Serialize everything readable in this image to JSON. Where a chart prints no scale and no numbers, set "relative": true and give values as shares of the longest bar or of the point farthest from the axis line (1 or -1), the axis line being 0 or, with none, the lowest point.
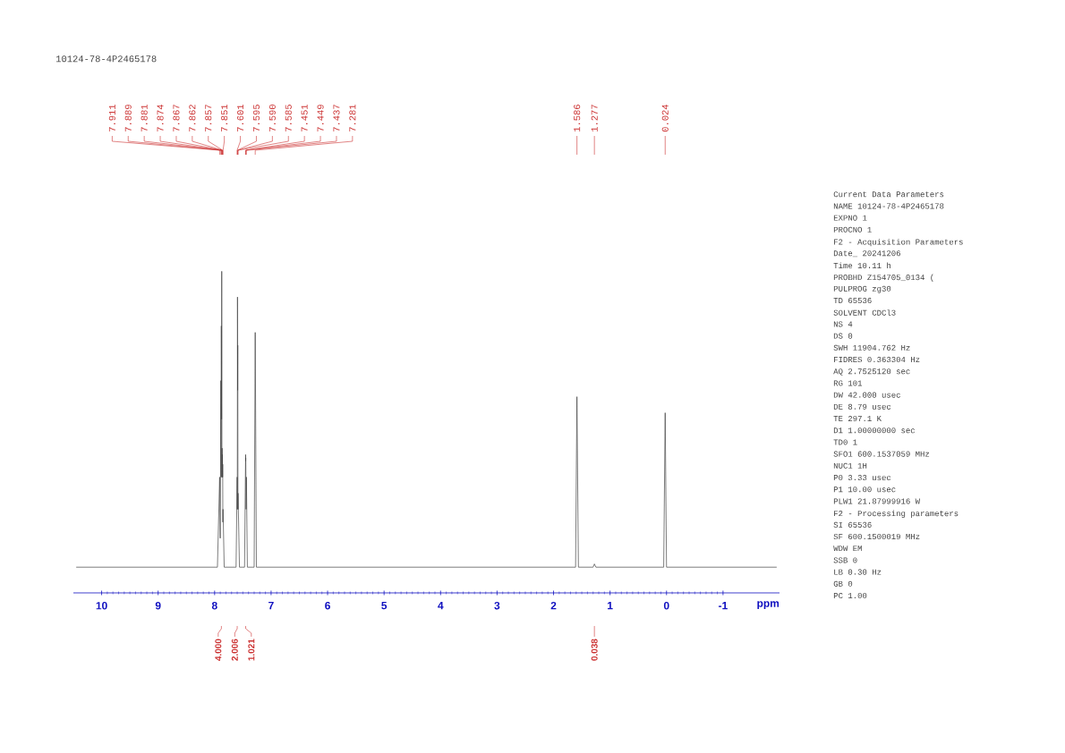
{
  "chart_data": {
    "type": "line",
    "title": "10124-78-4P2465178",
    "relative": true,
    "color": "#444444",
    "x": [
      10.45,
      7.95,
      7.911,
      7.9,
      7.889,
      7.885,
      7.881,
      7.877,
      7.874,
      7.87,
      7.867,
      7.864,
      7.862,
      7.859,
      7.857,
      7.854,
      7.851,
      7.83,
      7.62,
      7.601,
      7.598,
      7.595,
      7.592,
      7.59,
      7.587,
      7.585,
      7.56,
      7.47,
      7.451,
      7.45,
      7.449,
      7.443,
      7.437,
      7.42,
      7.3,
      7.281,
      7.26,
      1.61,
      1.586,
      1.56,
      1.3,
      1.277,
      1.25,
      0.05,
      0.024,
      0.0,
      -1.95
    ],
    "values": [
      0.08,
      0.08,
      0.36,
      0.17,
      0.66,
      0.36,
      0.83,
      0.54,
      1.0,
      0.36,
      0.45,
      0.36,
      0.43,
      0.36,
      0.4,
      0.22,
      0.26,
      0.08,
      0.08,
      0.36,
      0.26,
      0.92,
      0.63,
      0.77,
      0.26,
      0.31,
      0.08,
      0.08,
      0.43,
      0.41,
      0.42,
      0.26,
      0.36,
      0.08,
      0.08,
      0.81,
      0.08,
      0.08,
      0.61,
      0.08,
      0.08,
      0.09,
      0.08,
      0.08,
      0.56,
      0.08,
      0.08
    ],
    "xlim": [
      10.5,
      -2.0
    ],
    "xticks": [
      10,
      9,
      8,
      7,
      6,
      5,
      4,
      3,
      2,
      1,
      0,
      -1
    ],
    "xlabel": "ppm",
    "annotations": [
      {
        "text": "7.911",
        "x": 7.911
      },
      {
        "text": "7.889",
        "x": 7.889
      },
      {
        "text": "7.881",
        "x": 7.881
      },
      {
        "text": "7.874",
        "x": 7.874
      },
      {
        "text": "7.867",
        "x": 7.867
      },
      {
        "text": "7.862",
        "x": 7.862
      },
      {
        "text": "7.857",
        "x": 7.857
      },
      {
        "text": "7.851",
        "x": 7.851
      },
      {
        "text": "7.601",
        "x": 7.601
      },
      {
        "text": "7.595",
        "x": 7.595
      },
      {
        "text": "7.590",
        "x": 7.59
      },
      {
        "text": "7.585",
        "x": 7.585
      },
      {
        "text": "7.451",
        "x": 7.451
      },
      {
        "text": "7.449",
        "x": 7.449
      },
      {
        "text": "7.437",
        "x": 7.437
      },
      {
        "text": "7.281",
        "x": 7.281
      },
      {
        "text": "1.586",
        "x": 1.586
      },
      {
        "text": "1.277",
        "x": 1.277
      },
      {
        "text": "0.024",
        "x": 0.024
      },
      {
        "text": "4.000",
        "x": 7.88
      },
      {
        "text": "2.006",
        "x": 7.6
      },
      {
        "text": "1.021",
        "x": 7.45
      },
      {
        "text": "0.038",
        "x": 1.277
      },
      "Current Data Parameters",
      "NAME 10124-78-4P2465178",
      "EXPNO 1",
      "PROCNO 1",
      "F2 - Acquisition Parameters",
      "Date_ 20241206",
      "Time 10.11 h",
      "PROBHD Z154705_0134 (",
      "PULPROG zg30",
      "TD 65536",
      "SOLVENT CDCl3",
      "NS 4",
      "DS 0",
      "SWH 11904.762 Hz",
      "FIDRES 0.363304 Hz",
      "AQ 2.7525120 sec",
      "RG 101",
      "DW 42.000 usec",
      "DE 8.79 usec",
      "TE 297.1 K",
      "D1 1.00000000 sec",
      "TD0 1",
      "SFO1 600.1537059 MHz",
      "NUC1 1H",
      "P0 3.33 usec",
      "P1 10.00 usec",
      "PLW1 21.87999916 W",
      "F2 - Processing parameters",
      "SI 65536",
      "SF 600.1500019 MHz",
      "WDW EM",
      "SSB 0",
      "LB 0.30 Hz",
      "GB 0",
      "PC 1.00"
    ]
  }
}
